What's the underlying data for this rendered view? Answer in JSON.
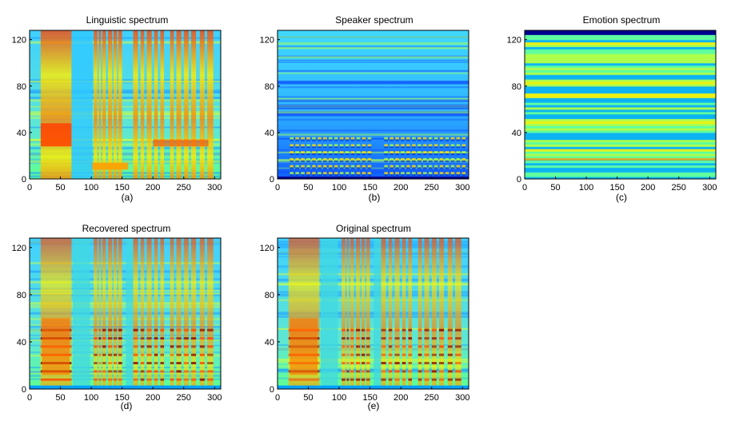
{
  "figure": {
    "panels": [
      {
        "id": "a",
        "title": "Linguistic spectrum",
        "caption": "(a)"
      },
      {
        "id": "b",
        "title": "Speaker spectrum",
        "caption": "(b)"
      },
      {
        "id": "c",
        "title": "Emotion spectrum",
        "caption": "(c)"
      },
      {
        "id": "d",
        "title": "Recovered spectrum",
        "caption": "(d)"
      },
      {
        "id": "e",
        "title": "Original spectrum",
        "caption": "(e)"
      }
    ]
  },
  "colors": {
    "low": "#00008f",
    "mid_low": "#00a8ff",
    "mid": "#5fff9f",
    "mid_high": "#ffee00",
    "high": "#ff4000",
    "max": "#8f0000"
  },
  "chart_data": [
    {
      "type": "heatmap",
      "title": "Linguistic spectrum",
      "caption": "(a)",
      "xlim": [
        0,
        310
      ],
      "ylim": [
        0,
        128
      ],
      "xticks": [
        0,
        50,
        100,
        150,
        200,
        250,
        300
      ],
      "yticks": [
        0,
        40,
        80,
        120
      ],
      "colormap": "jet",
      "pattern": "phoneme-dependent vertical segments, yellow/red blocks over cyan background"
    },
    {
      "type": "heatmap",
      "title": "Speaker spectrum",
      "caption": "(b)",
      "xlim": [
        0,
        310
      ],
      "ylim": [
        0,
        128
      ],
      "xticks": [
        0,
        50,
        100,
        150,
        200,
        250,
        300
      ],
      "yticks": [
        0,
        40,
        80,
        120
      ],
      "colormap": "jet",
      "pattern": "mostly cyan/blue with harmonic striations below 40"
    },
    {
      "type": "heatmap",
      "title": "Emotion spectrum",
      "caption": "(c)",
      "xlim": [
        0,
        310
      ],
      "ylim": [
        0,
        128
      ],
      "xticks": [
        0,
        50,
        100,
        150,
        200,
        250,
        300
      ],
      "yticks": [
        0,
        40,
        80,
        120
      ],
      "colormap": "jet",
      "pattern": "time-invariant horizontal bands"
    },
    {
      "type": "heatmap",
      "title": "Recovered spectrum",
      "caption": "(d)",
      "xlim": [
        0,
        310
      ],
      "ylim": [
        0,
        128
      ],
      "xticks": [
        0,
        50,
        100,
        150,
        200,
        250,
        300
      ],
      "yticks": [
        0,
        40,
        80,
        120
      ],
      "colormap": "jet",
      "pattern": "smooth speech spectrogram"
    },
    {
      "type": "heatmap",
      "title": "Original spectrum",
      "caption": "(e)",
      "xlim": [
        0,
        310
      ],
      "ylim": [
        0,
        128
      ],
      "xticks": [
        0,
        50,
        100,
        150,
        200,
        250,
        300
      ],
      "yticks": [
        0,
        40,
        80,
        120
      ],
      "colormap": "jet",
      "pattern": "noisy speech spectrogram"
    }
  ]
}
